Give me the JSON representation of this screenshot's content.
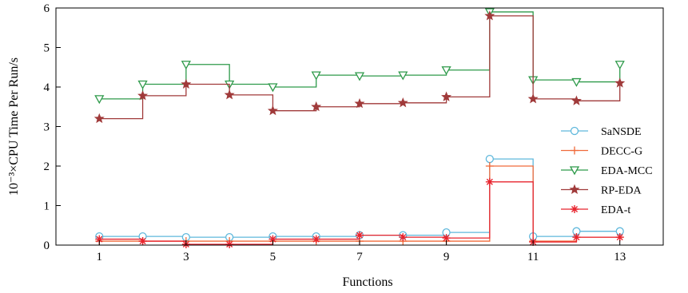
{
  "chart_data": {
    "type": "line",
    "step": "post",
    "xlabel": "Functions",
    "ylabel": "10⁻³×CPU Time Per Run/s",
    "xlim": [
      0,
      14
    ],
    "ylim": [
      0,
      6
    ],
    "xticks": [
      1,
      3,
      5,
      7,
      9,
      11,
      13
    ],
    "yticks": [
      0,
      1,
      2,
      3,
      4,
      5,
      6
    ],
    "grid": false,
    "legend_position": "right",
    "x": [
      1,
      2,
      3,
      4,
      5,
      6,
      7,
      8,
      9,
      10,
      11,
      12,
      13
    ],
    "series": [
      {
        "name": "SaNSDE",
        "color": "#5fb8dc",
        "marker": "circle",
        "values": [
          0.22,
          0.22,
          0.2,
          0.2,
          0.22,
          0.22,
          0.25,
          0.25,
          0.32,
          2.18,
          0.22,
          0.35,
          0.35
        ]
      },
      {
        "name": "DECC-G",
        "color": "#f06a3a",
        "marker": "plus",
        "values": [
          0.1,
          0.1,
          0.1,
          0.1,
          0.1,
          0.1,
          0.1,
          0.1,
          0.1,
          2.0,
          0.1,
          0.2,
          0.2
        ]
      },
      {
        "name": "EDA-MCC",
        "color": "#2e9a4a",
        "marker": "triangle-down",
        "values": [
          3.7,
          4.07,
          4.57,
          4.07,
          4.0,
          4.3,
          4.28,
          4.3,
          4.43,
          5.9,
          4.18,
          4.13,
          4.57
        ]
      },
      {
        "name": "RP-EDA",
        "color": "#a03a3a",
        "marker": "star",
        "values": [
          3.2,
          3.78,
          4.07,
          3.8,
          3.4,
          3.5,
          3.58,
          3.6,
          3.75,
          5.8,
          3.7,
          3.65,
          4.1
        ]
      },
      {
        "name": "EDA-t",
        "color": "#e8242e",
        "marker": "asterisk",
        "values": [
          0.15,
          0.1,
          0.02,
          0.02,
          0.15,
          0.15,
          0.25,
          0.2,
          0.18,
          1.6,
          0.08,
          0.2,
          0.2
        ]
      }
    ]
  }
}
